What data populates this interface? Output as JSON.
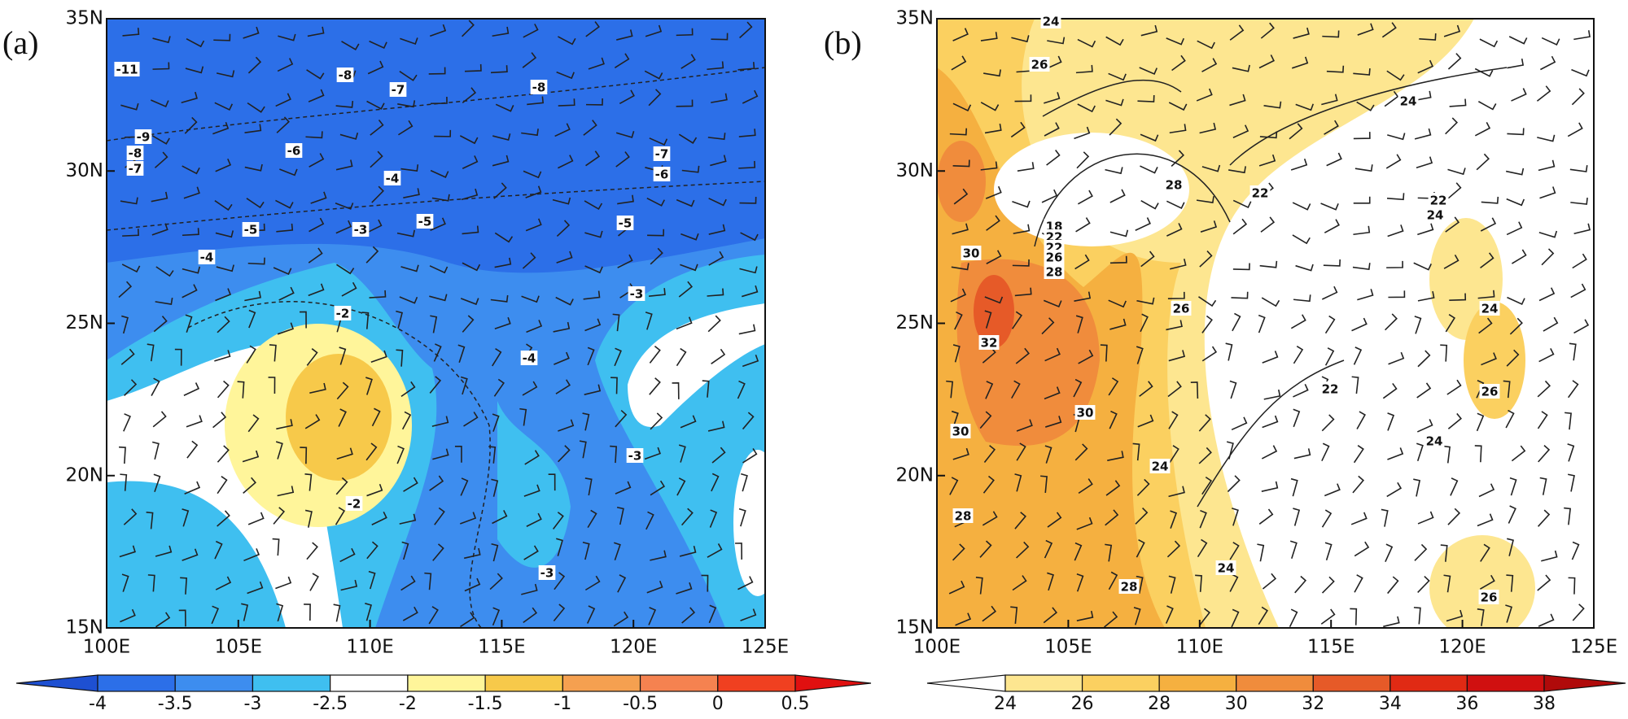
{
  "panels": [
    {
      "label": "(a)",
      "xticks": [
        "100E",
        "105E",
        "110E",
        "115E",
        "120E",
        "125E"
      ],
      "yticks": [
        "35N",
        "30N",
        "25N",
        "20N",
        "15N"
      ],
      "colorbar": {
        "levels": [
          -4,
          -3.5,
          -3,
          -2.5,
          -2,
          -1.5,
          -1,
          -0.5,
          0,
          0.5
        ],
        "colors": [
          "#1e50d2",
          "#2c6fe8",
          "#3d8def",
          "#3fbff0",
          "#ffffff",
          "#fff59a",
          "#f7c94a",
          "#f5a050",
          "#f58250",
          "#f04020",
          "#e01010"
        ]
      },
      "contour_labels": [
        -11,
        -8,
        -7,
        -8,
        -9,
        -8,
        -7,
        -6,
        -7,
        -6,
        -4,
        -5,
        -3,
        -5,
        -5,
        -4,
        -3,
        -2,
        -4,
        -3,
        -2,
        -3
      ]
    },
    {
      "label": "(b)",
      "xticks": [
        "100E",
        "105E",
        "110E",
        "115E",
        "120E",
        "125E"
      ],
      "yticks": [
        "35N",
        "30N",
        "25N",
        "20N",
        "15N"
      ],
      "colorbar": {
        "levels": [
          24,
          26,
          28,
          30,
          32,
          34,
          36,
          38
        ],
        "colors": [
          "#ffffff",
          "#fde690",
          "#fbd060",
          "#f5b040",
          "#f08c3c",
          "#e65a28",
          "#e02a14",
          "#d01010",
          "#b00a0a"
        ]
      },
      "contour_labels": [
        24,
        26,
        24,
        28,
        22,
        22,
        24,
        30,
        18,
        22,
        22,
        26,
        28,
        26,
        24,
        32,
        30,
        22,
        26,
        30,
        24,
        24,
        28,
        24,
        28,
        26
      ]
    }
  ]
}
